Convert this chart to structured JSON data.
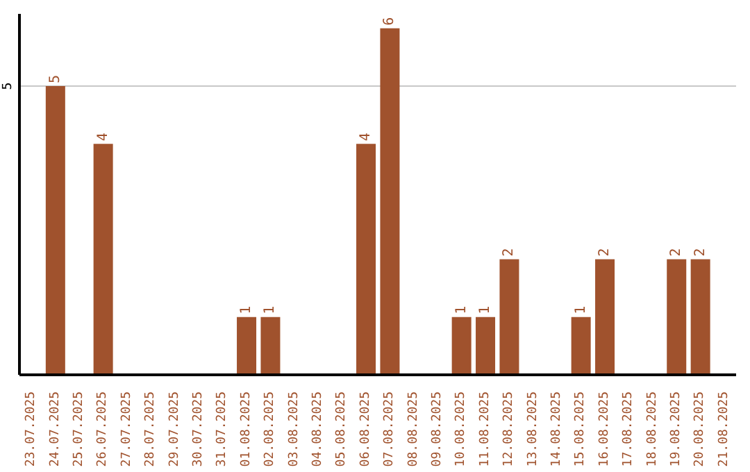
{
  "chart_data": {
    "type": "bar",
    "categories": [
      "23.07.2025",
      "24.07.2025",
      "25.07.2025",
      "26.07.2025",
      "27.07.2025",
      "28.07.2025",
      "29.07.2025",
      "30.07.2025",
      "31.07.2025",
      "01.08.2025",
      "02.08.2025",
      "03.08.2025",
      "04.08.2025",
      "05.08.2025",
      "06.08.2025",
      "07.08.2025",
      "08.08.2025",
      "09.08.2025",
      "10.08.2025",
      "11.08.2025",
      "12.08.2025",
      "13.08.2025",
      "14.08.2025",
      "15.08.2025",
      "16.08.2025",
      "17.08.2025",
      "18.08.2025",
      "19.08.2025",
      "20.08.2025",
      "21.08.2025"
    ],
    "values": [
      0,
      5,
      0,
      4,
      0,
      0,
      0,
      0,
      0,
      1,
      1,
      0,
      0,
      0,
      4,
      6,
      0,
      0,
      1,
      1,
      2,
      0,
      0,
      1,
      2,
      0,
      0,
      2,
      2,
      0
    ],
    "value_labels": [
      null,
      "5",
      null,
      "4",
      null,
      null,
      null,
      null,
      null,
      "1",
      "1",
      null,
      null,
      null,
      "4",
      "6",
      null,
      null,
      "1",
      "1",
      "2",
      null,
      null,
      "1",
      "2",
      null,
      null,
      "2",
      "2",
      null
    ],
    "color": "#a0522d",
    "ylim": [
      0,
      6.25
    ],
    "yticks": [
      5
    ],
    "grid": "y"
  }
}
